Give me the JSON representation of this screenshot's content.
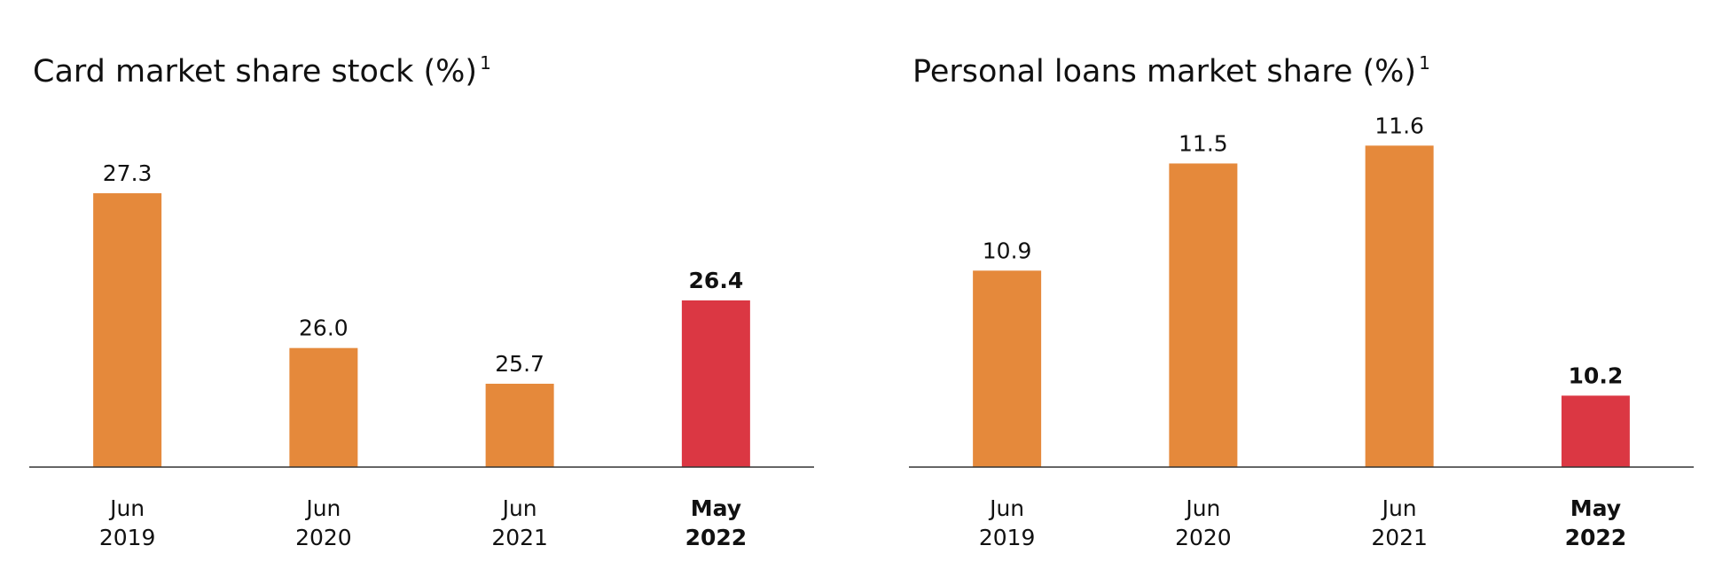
{
  "chart_data": [
    {
      "type": "bar",
      "title": "Card market share stock (%)",
      "title_note": "1",
      "categories": [
        [
          "Jun",
          "2019"
        ],
        [
          "Jun",
          "2020"
        ],
        [
          "Jun",
          "2021"
        ],
        [
          "May",
          "2022"
        ]
      ],
      "values": [
        27.3,
        26.0,
        25.7,
        26.4
      ],
      "value_labels": [
        "27.3",
        "26.0",
        "25.7",
        "26.4"
      ],
      "colors": [
        "#e5893b",
        "#e5893b",
        "#e5893b",
        "#db3743"
      ],
      "bold": [
        false,
        false,
        false,
        true
      ],
      "ylim": [
        25,
        28
      ]
    },
    {
      "type": "bar",
      "title": "Personal loans market share (%)",
      "title_note": "1",
      "categories": [
        [
          "Jun",
          "2019"
        ],
        [
          "Jun",
          "2020"
        ],
        [
          "Jun",
          "2021"
        ],
        [
          "May",
          "2022"
        ]
      ],
      "values": [
        10.9,
        11.5,
        11.6,
        10.2
      ],
      "value_labels": [
        "10.9",
        "11.5",
        "11.6",
        "10.2"
      ],
      "colors": [
        "#e5893b",
        "#e5893b",
        "#e5893b",
        "#db3743"
      ],
      "bold": [
        false,
        false,
        false,
        true
      ],
      "ylim": [
        9.8,
        11.8
      ]
    }
  ]
}
